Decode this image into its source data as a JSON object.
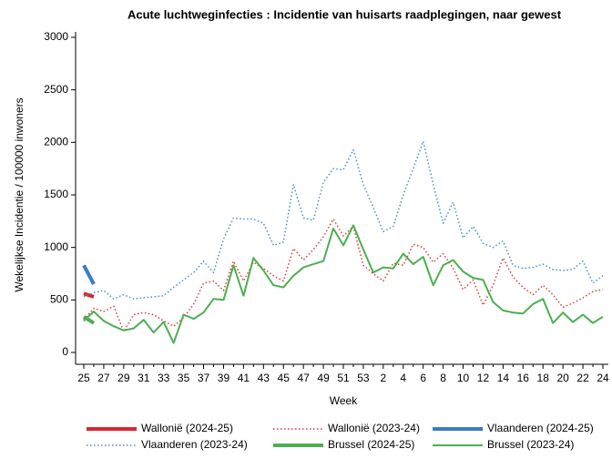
{
  "chart_data": {
    "type": "line",
    "title": "Acute luchtweginfecties : Incidentie van huisarts raadplegingen, naar gewest",
    "x_label": "Week",
    "y_label": "Wekelijkse Incidentie / 100000 inwoners",
    "categories": [
      "25",
      null,
      "27",
      null,
      "29",
      null,
      "31",
      null,
      "33",
      null,
      "35",
      null,
      "37",
      null,
      "39",
      null,
      "41",
      null,
      "43",
      null,
      "45",
      null,
      "47",
      null,
      "49",
      null,
      "51",
      null,
      "53",
      null,
      "2",
      null,
      "4",
      null,
      "6",
      null,
      "8",
      null,
      "10",
      null,
      "12",
      null,
      "14",
      null,
      "16",
      null,
      "18",
      null,
      "20",
      null,
      "22",
      null,
      "24"
    ],
    "ylim": [
      0,
      3000
    ],
    "yticks": [
      0,
      500,
      1000,
      1500,
      2000,
      2500,
      3000
    ],
    "grid": false,
    "legend": "bottom",
    "series": [
      {
        "name": "Wallonië (2024-25)",
        "color": "#d9262c",
        "width": 4,
        "style": "solid",
        "values": [
          560,
          530,
          null,
          null,
          null,
          null,
          null,
          null,
          null,
          null,
          null,
          null,
          null,
          null,
          null,
          null,
          null,
          null,
          null,
          null,
          null,
          null,
          null,
          null,
          null,
          null,
          null,
          null,
          null,
          null,
          null,
          null,
          null,
          null,
          null,
          null,
          null,
          null,
          null,
          null,
          null,
          null,
          null,
          null,
          null,
          null,
          null,
          null,
          null,
          null,
          null,
          null,
          null
        ]
      },
      {
        "name": "Wallonië (2023-24)",
        "color": "#e03a3a",
        "width": 1.5,
        "style": "dotted",
        "values": [
          310,
          420,
          390,
          440,
          200,
          360,
          380,
          360,
          300,
          250,
          330,
          460,
          660,
          680,
          590,
          870,
          680,
          860,
          800,
          730,
          680,
          990,
          880,
          980,
          1100,
          1270,
          1110,
          1200,
          830,
          750,
          680,
          850,
          830,
          1030,
          1000,
          860,
          940,
          800,
          600,
          690,
          450,
          640,
          900,
          720,
          620,
          550,
          640,
          550,
          430,
          470,
          520,
          580,
          600
        ]
      },
      {
        "name": "Vlaanderen (2024-25)",
        "color": "#3a7cc2",
        "width": 4,
        "style": "solid",
        "values": [
          830,
          650,
          null,
          null,
          null,
          null,
          null,
          null,
          null,
          null,
          null,
          null,
          null,
          null,
          null,
          null,
          null,
          null,
          null,
          null,
          null,
          null,
          null,
          null,
          null,
          null,
          null,
          null,
          null,
          null,
          null,
          null,
          null,
          null,
          null,
          null,
          null,
          null,
          null,
          null,
          null,
          null,
          null,
          null,
          null,
          null,
          null,
          null,
          null,
          null,
          null,
          null,
          null
        ]
      },
      {
        "name": "Vlaanderen (2023-24)",
        "color": "#4a8ed0",
        "width": 1.5,
        "style": "dotted",
        "values": [
          530,
          570,
          590,
          510,
          550,
          510,
          520,
          530,
          540,
          620,
          690,
          760,
          870,
          760,
          1080,
          1280,
          1270,
          1270,
          1230,
          1020,
          1050,
          1600,
          1280,
          1260,
          1620,
          1750,
          1740,
          1930,
          1600,
          1380,
          1150,
          1200,
          1500,
          1750,
          2010,
          1600,
          1230,
          1430,
          1090,
          1200,
          1040,
          1000,
          1060,
          830,
          800,
          810,
          840,
          790,
          780,
          790,
          870,
          660,
          730
        ]
      },
      {
        "name": "Brussel (2024-25)",
        "color": "#4caf50",
        "width": 4,
        "style": "solid",
        "values": [
          340,
          280,
          null,
          null,
          null,
          null,
          null,
          null,
          null,
          null,
          null,
          null,
          null,
          null,
          null,
          null,
          null,
          null,
          null,
          null,
          null,
          null,
          null,
          null,
          null,
          null,
          null,
          null,
          null,
          null,
          null,
          null,
          null,
          null,
          null,
          null,
          null,
          null,
          null,
          null,
          null,
          null,
          null,
          null,
          null,
          null,
          null,
          null,
          null,
          null,
          null,
          null,
          null
        ]
      },
      {
        "name": "Brussel (2023-24)",
        "color": "#4caf50",
        "width": 2,
        "style": "solid",
        "values": [
          300,
          390,
          300,
          250,
          210,
          230,
          310,
          190,
          290,
          90,
          360,
          320,
          380,
          510,
          500,
          830,
          540,
          900,
          780,
          640,
          620,
          730,
          810,
          840,
          870,
          1180,
          1020,
          1210,
          980,
          760,
          810,
          800,
          940,
          840,
          910,
          640,
          830,
          880,
          770,
          710,
          690,
          480,
          400,
          380,
          370,
          460,
          510,
          280,
          380,
          290,
          360,
          280,
          340
        ]
      }
    ]
  }
}
